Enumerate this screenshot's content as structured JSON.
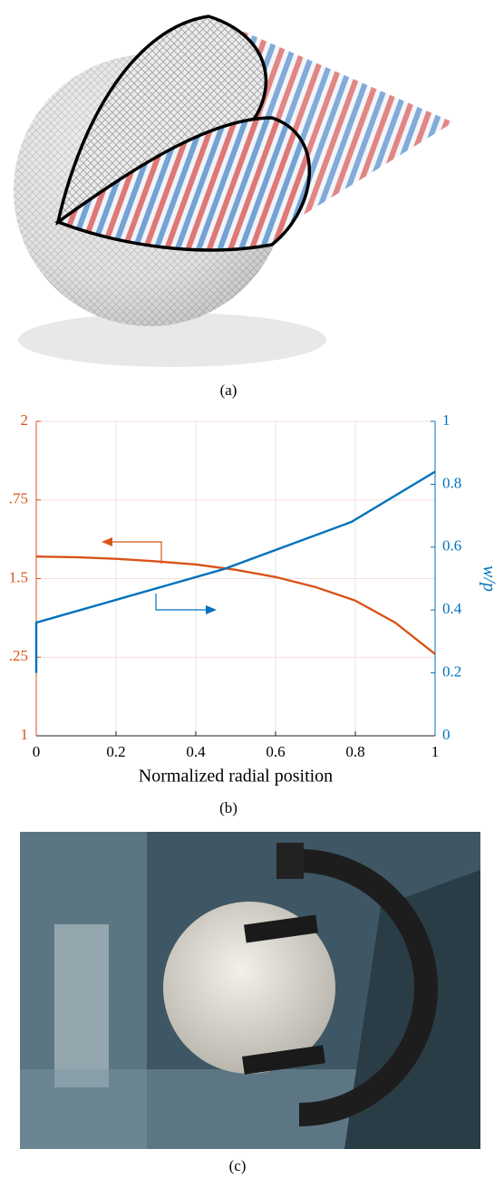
{
  "figure": {
    "captions": [
      "(a)",
      "(b)",
      "(c)"
    ]
  },
  "chart_data": {
    "type": "line",
    "xlabel": "Normalized radial position",
    "y2label": "w/p",
    "xlim": [
      0,
      1
    ],
    "xticks": [
      0,
      0.2,
      0.4,
      0.6,
      0.8,
      1
    ],
    "ylim": [
      1,
      2
    ],
    "yticks": [
      1,
      {
        "value": 1.25,
        "label": ".25"
      },
      1.5,
      {
        "value": 1.75,
        "label": ".75"
      },
      2
    ],
    "y2lim": [
      0,
      1
    ],
    "y2ticks": [
      0,
      0.2,
      0.4,
      0.6,
      0.8,
      1
    ],
    "grid": true,
    "left_color": "#D95319",
    "right_color": "#0072BD",
    "series": [
      {
        "color": "#D95319",
        "x": [
          0,
          0.1,
          0.2,
          0.3,
          0.4,
          0.5,
          0.6,
          0.7,
          0.8,
          0.9,
          1
        ],
        "values": [
          1.57,
          1.568,
          1.563,
          1.555,
          1.545,
          1.528,
          1.505,
          1.473,
          1.43,
          1.36,
          1.26
        ]
      },
      {
        "color": "#0072BD",
        "axis": "y2",
        "x": [
          0,
          0,
          0.47,
          0.79,
          1
        ],
        "values": [
          0.2,
          0.36,
          0.53,
          0.68,
          0.84
        ]
      }
    ]
  }
}
